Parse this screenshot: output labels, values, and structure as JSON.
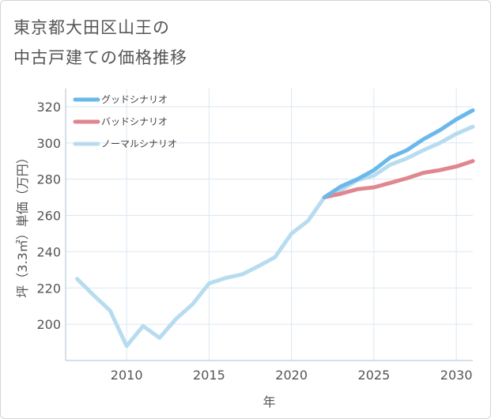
{
  "title": [
    "東京都大田区山王の",
    "中古戸建ての価格推移"
  ],
  "chart_data": {
    "type": "line",
    "xlabel": "年",
    "ylabel": "坪（3.3㎡）単価（万円）",
    "xlim": [
      2006.3,
      2031
    ],
    "ylim": [
      180,
      330
    ],
    "x_ticks": [
      2010,
      2015,
      2020,
      2025,
      2030
    ],
    "y_ticks": [
      200,
      220,
      240,
      260,
      280,
      300,
      320
    ],
    "grid": true,
    "legend_position": "top-left",
    "series": [
      {
        "name": "グッドシナリオ",
        "color": "#6bb8ea",
        "x": [
          2022,
          2023,
          2024,
          2025,
          2026,
          2027,
          2028,
          2029,
          2030,
          2031
        ],
        "values": [
          270,
          276,
          280,
          285,
          292,
          296,
          302,
          307,
          313,
          318
        ]
      },
      {
        "name": "バッドシナリオ",
        "color": "#e0868f",
        "x": [
          2022,
          2023,
          2024,
          2025,
          2026,
          2027,
          2028,
          2029,
          2030,
          2031
        ],
        "values": [
          270,
          272,
          274.5,
          275.5,
          278,
          280.5,
          283.5,
          285,
          287,
          290
        ]
      },
      {
        "name": "ノーマルシナリオ",
        "color": "#b8dcef",
        "x": [
          2007,
          2008,
          2009,
          2010,
          2011,
          2012,
          2013,
          2014,
          2015,
          2016,
          2017,
          2018,
          2019,
          2020,
          2021,
          2022,
          2023,
          2024,
          2025,
          2026,
          2027,
          2028,
          2029,
          2030,
          2031
        ],
        "values": [
          225,
          216,
          207.5,
          188,
          199,
          192.5,
          203,
          211,
          222.5,
          225.5,
          227.5,
          232,
          237,
          250,
          257,
          270,
          274,
          279.5,
          282,
          288,
          291.5,
          296,
          300,
          305,
          309
        ]
      }
    ]
  }
}
